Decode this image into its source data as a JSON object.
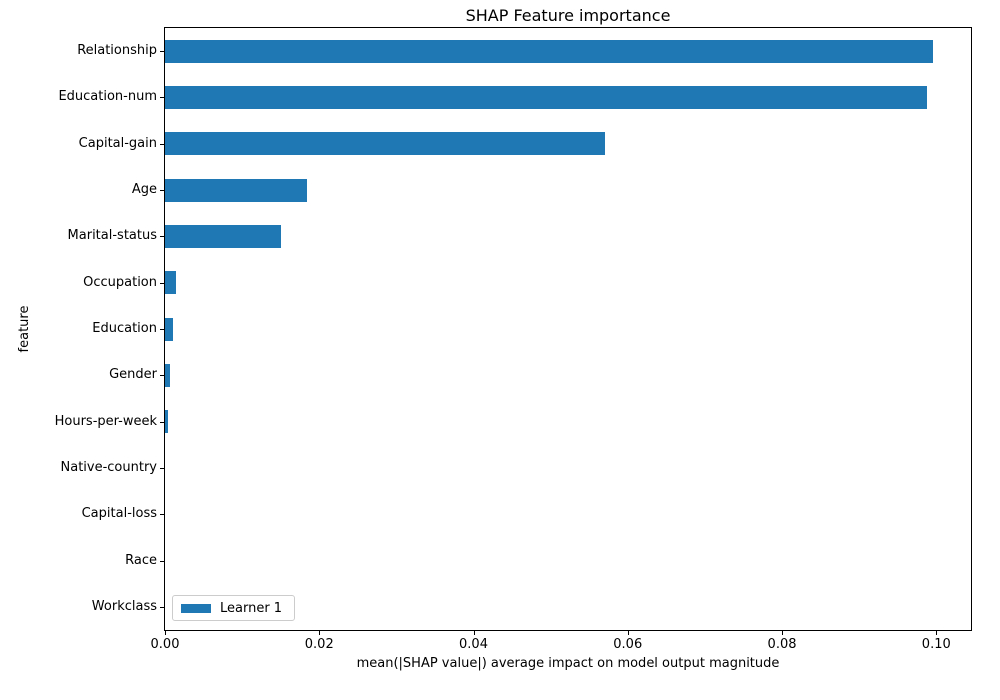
{
  "chart_data": {
    "type": "bar",
    "orientation": "horizontal",
    "title": "SHAP Feature importance",
    "xlabel": "mean(|SHAP value|) average impact on model output magnitude",
    "ylabel": "feature",
    "categories": [
      "Relationship",
      "Education-num",
      "Capital-gain",
      "Age",
      "Marital-status",
      "Occupation",
      "Education",
      "Gender",
      "Hours-per-week",
      "Native-country",
      "Capital-loss",
      "Race",
      "Workclass"
    ],
    "series": [
      {
        "name": "Learner 1",
        "values": [
          0.0996,
          0.0988,
          0.057,
          0.0184,
          0.015,
          0.0014,
          0.001,
          0.0006,
          0.0004,
          0.0001,
          5e-05,
          2e-05,
          1e-05
        ]
      }
    ],
    "xlim": [
      0,
      0.1045
    ],
    "x_ticks": [
      0,
      0.02,
      0.04,
      0.06,
      0.08,
      0.1
    ],
    "x_tick_labels": [
      "0.00",
      "0.02",
      "0.04",
      "0.06",
      "0.08",
      "0.10"
    ],
    "bar_color": "#1f77b4",
    "axis_color": "#000000",
    "legend": {
      "position": "lower left",
      "label": "Learner 1"
    },
    "grid": false
  }
}
